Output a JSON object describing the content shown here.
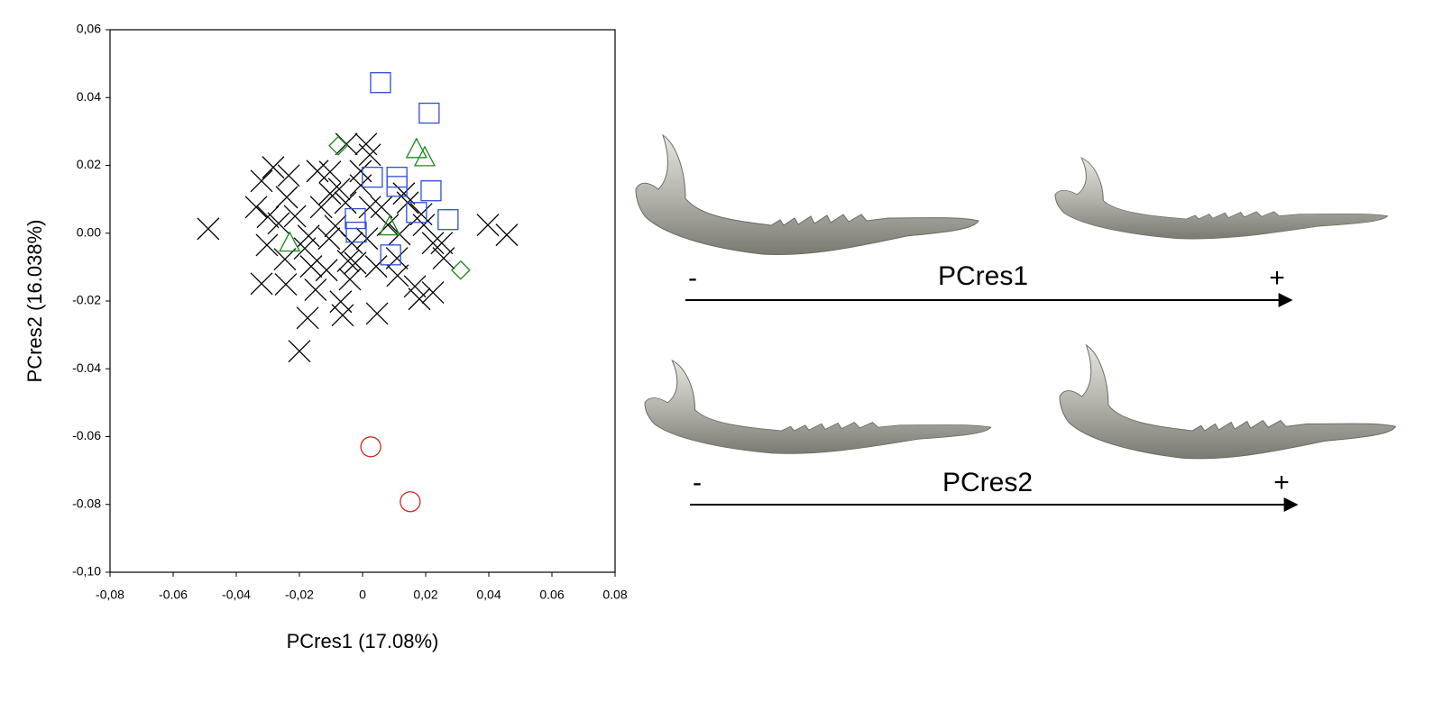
{
  "chart_data": {
    "type": "scatter",
    "xlabel": "PCres1 (17.08%)",
    "ylabel": "PCres2 (16.038%)",
    "xlim": [
      -0.08,
      0.08
    ],
    "ylim": [
      -0.1,
      0.06
    ],
    "xticks": [
      {
        "value": -0.08,
        "label": "-0,08"
      },
      {
        "value": -0.06,
        "label": "-0.06"
      },
      {
        "value": -0.04,
        "label": "-0,04"
      },
      {
        "value": -0.02,
        "label": "-0,02"
      },
      0,
      {
        "value": 0.02,
        "label": "0,02"
      },
      {
        "value": 0.04,
        "label": "0,04"
      },
      0.06,
      0.08
    ],
    "yticks": [
      {
        "value": -0.1,
        "label": "-0,10"
      },
      {
        "value": -0.08,
        "label": "-0.08"
      },
      {
        "value": -0.06,
        "label": "-0.06"
      },
      {
        "value": -0.04,
        "label": "-0.04"
      },
      {
        "value": -0.02,
        "label": "-0.02"
      },
      {
        "value": 0,
        "label": "0.00"
      },
      0.02,
      0.04,
      {
        "value": 0.06,
        "label": "0,06"
      }
    ],
    "series": [
      {
        "color": "#000000",
        "marker": "x",
        "x": [
          -0.0489,
          0.0457,
          0.0397,
          -0.02,
          -0.0174,
          -0.0283,
          -0.0234,
          -0.032,
          -0.0337,
          -0.024,
          -0.03,
          -0.0303,
          -0.0243,
          -0.032,
          -0.0246,
          -0.0163,
          -0.0183,
          -0.0171,
          -0.0131,
          -0.0103,
          -0.0103,
          -0.0051,
          0.0011,
          0.0023,
          -0.0006,
          -0.0074,
          -0.0054,
          0.0023,
          0.006,
          0.008,
          0.0131,
          0.0143,
          0.0117,
          0.0186,
          0.0223,
          0.0251,
          0.0257,
          0.0223,
          0.018,
          0.0166,
          0.0111,
          0.0109,
          0.0043,
          -0.0023,
          -0.0046,
          -0.004,
          -0.0069,
          -0.0063,
          0.0046,
          -0.0149,
          -0.0114,
          -0.0106,
          -0.0034,
          0.0014,
          0.0194,
          -0.0006,
          -0.0143,
          -0.0086,
          -0.0266,
          -0.0214
        ],
        "y": [
          0.0013,
          -0.0005,
          0.0024,
          -0.0348,
          -0.025,
          0.0194,
          0.017,
          0.0154,
          0.0077,
          0.0106,
          0.0048,
          -0.0035,
          -0.0151,
          -0.0149,
          -0.0077,
          -0.0098,
          -0.0045,
          -0.0008,
          0.0077,
          0.0117,
          0.0181,
          0.0263,
          0.0263,
          0.0231,
          0.0183,
          0.013,
          0.009,
          0.0077,
          0.0077,
          0.0024,
          0.0117,
          0.009,
          -0.0003,
          0.0056,
          -0.0029,
          -0.0029,
          -0.0074,
          -0.0175,
          -0.0194,
          -0.0157,
          -0.0125,
          -0.0074,
          -0.0098,
          -0.0088,
          -0.0082,
          -0.0136,
          -0.0202,
          -0.0242,
          -0.0237,
          -0.0167,
          -0.0109,
          -0.0016,
          -0.0029,
          -0.0016,
          0.0024,
          0.0141,
          0.0183,
          0.0021,
          0.0029,
          0.005
        ]
      },
      {
        "color": "#2e4fd0",
        "marker": "square",
        "x": [
          0.0057,
          0.0211,
          0.0031,
          0.0109,
          0.0217,
          0.0109,
          0.0171,
          0.0271,
          -0.0023,
          -0.002,
          0.0089
        ],
        "y": [
          0.0444,
          0.0354,
          0.0165,
          0.0165,
          0.0125,
          0.0138,
          0.0061,
          0.004,
          0.0043,
          0.0003,
          -0.0064
        ]
      },
      {
        "color": "#1a8a1a",
        "marker": "triangle",
        "x": [
          0.0171,
          0.0197,
          0.0086,
          -0.0231
        ],
        "y": [
          0.0247,
          0.0223,
          0.0019,
          -0.0029
        ]
      },
      {
        "color": "#1a8a1a",
        "marker": "diamond",
        "x": [
          -0.0077,
          0.0311
        ],
        "y": [
          0.0258,
          -0.0109
        ]
      },
      {
        "color": "#d02a1e",
        "marker": "circle",
        "x": [
          0.0026,
          0.0151
        ],
        "y": [
          -0.063,
          -0.0792
        ]
      }
    ]
  },
  "shape_panels": [
    {
      "axis": "PCres1",
      "minus": "-",
      "plus": "+"
    },
    {
      "axis": "PCres2",
      "minus": "-",
      "plus": "+"
    }
  ]
}
